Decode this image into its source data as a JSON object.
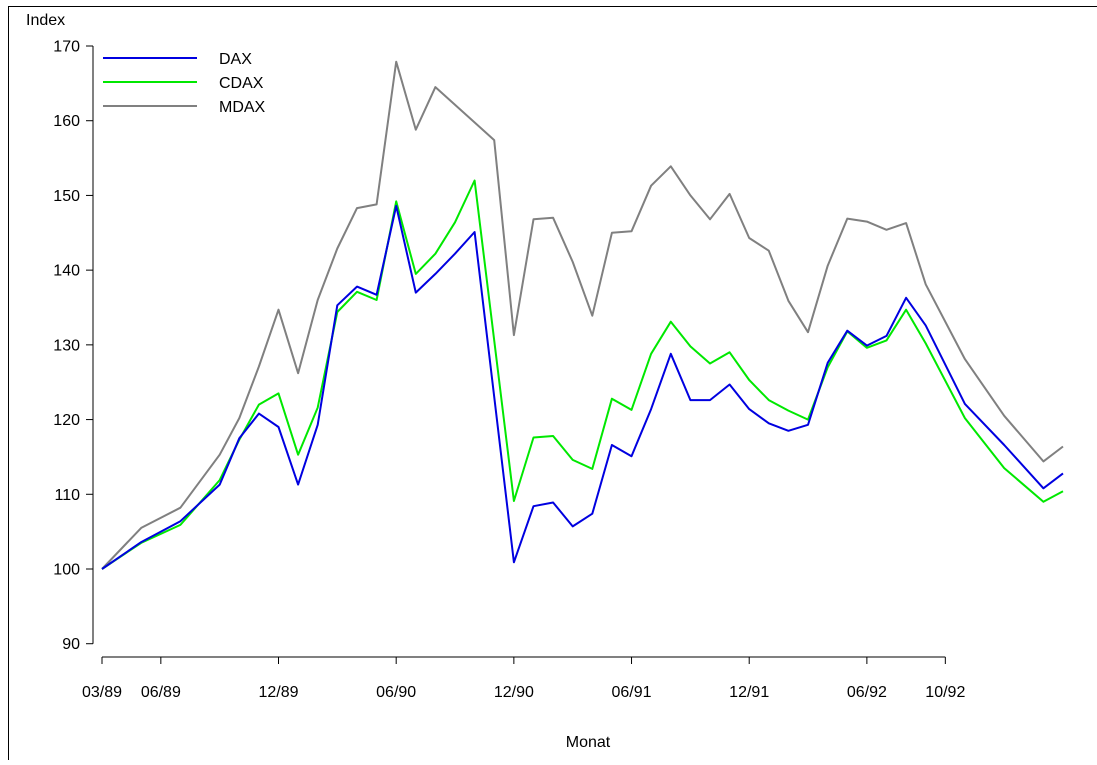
{
  "chart_data": {
    "type": "line",
    "ylabel": "Index",
    "xlabel": "Monat",
    "ylim": [
      88,
      172
    ],
    "yticks": [
      90,
      100,
      110,
      120,
      130,
      140,
      150,
      160,
      170
    ],
    "xticks": [
      {
        "label": "03/89",
        "month": "1989-03"
      },
      {
        "label": "06/89",
        "month": "1989-06"
      },
      {
        "label": "12/89",
        "month": "1989-12"
      },
      {
        "label": "06/90",
        "month": "1990-06"
      },
      {
        "label": "12/90",
        "month": "1990-12"
      },
      {
        "label": "06/91",
        "month": "1991-06"
      },
      {
        "label": "12/91",
        "month": "1991-12"
      },
      {
        "label": "06/92",
        "month": "1992-06"
      },
      {
        "label": "10/92",
        "month": "1992-10"
      }
    ],
    "legend_position": "top-left",
    "grid": false,
    "series": [
      {
        "name": "DAX",
        "color": "#0000e0",
        "points": [
          [
            "1989-03",
            100.0
          ],
          [
            "1989-05",
            103.6
          ],
          [
            "1989-07",
            106.4
          ],
          [
            "1989-09",
            111.3
          ],
          [
            "1989-10",
            117.5
          ],
          [
            "1989-11",
            120.8
          ],
          [
            "1989-12",
            119.0
          ],
          [
            "1990-01",
            111.3
          ],
          [
            "1990-02",
            119.3
          ],
          [
            "1990-03",
            135.3
          ],
          [
            "1990-04",
            137.8
          ],
          [
            "1990-05",
            136.7
          ],
          [
            "1990-06",
            148.6
          ],
          [
            "1990-07",
            137.0
          ],
          [
            "1990-08",
            139.5
          ],
          [
            "1990-09",
            142.2
          ],
          [
            "1990-10",
            145.1
          ],
          [
            "1990-12",
            100.9
          ],
          [
            "1991-01",
            108.4
          ],
          [
            "1991-02",
            108.9
          ],
          [
            "1991-03",
            105.7
          ],
          [
            "1991-04",
            107.4
          ],
          [
            "1991-05",
            116.6
          ],
          [
            "1991-06",
            115.1
          ],
          [
            "1991-07",
            121.4
          ],
          [
            "1991-08",
            128.8
          ],
          [
            "1991-09",
            122.6
          ],
          [
            "1991-10",
            122.6
          ],
          [
            "1991-11",
            124.7
          ],
          [
            "1991-12",
            121.4
          ],
          [
            "1992-01",
            119.5
          ],
          [
            "1992-02",
            118.5
          ],
          [
            "1992-03",
            119.3
          ],
          [
            "1992-04",
            127.6
          ],
          [
            "1992-05",
            131.9
          ],
          [
            "1992-06",
            129.9
          ],
          [
            "1992-07",
            131.2
          ],
          [
            "1992-08",
            136.3
          ],
          [
            "1992-09",
            132.6
          ],
          [
            "1992-11",
            122.1
          ],
          [
            "1993-01",
            116.6
          ],
          [
            "1993-03",
            110.8
          ],
          [
            "1993-04",
            112.8
          ]
        ]
      },
      {
        "name": "CDAX",
        "color": "#00e800",
        "points": [
          [
            "1989-03",
            100.0
          ],
          [
            "1989-05",
            103.5
          ],
          [
            "1989-07",
            105.9
          ],
          [
            "1989-09",
            111.9
          ],
          [
            "1989-10",
            117.3
          ],
          [
            "1989-11",
            122.0
          ],
          [
            "1989-12",
            123.5
          ],
          [
            "1990-01",
            115.3
          ],
          [
            "1990-02",
            121.6
          ],
          [
            "1990-03",
            134.4
          ],
          [
            "1990-04",
            137.1
          ],
          [
            "1990-05",
            136.0
          ],
          [
            "1990-06",
            149.2
          ],
          [
            "1990-07",
            139.5
          ],
          [
            "1990-08",
            142.2
          ],
          [
            "1990-09",
            146.4
          ],
          [
            "1990-10",
            152.0
          ],
          [
            "1990-12",
            109.1
          ],
          [
            "1991-01",
            117.6
          ],
          [
            "1991-02",
            117.8
          ],
          [
            "1991-03",
            114.6
          ],
          [
            "1991-04",
            113.4
          ],
          [
            "1991-05",
            122.8
          ],
          [
            "1991-06",
            121.3
          ],
          [
            "1991-07",
            128.8
          ],
          [
            "1991-08",
            133.1
          ],
          [
            "1991-09",
            129.8
          ],
          [
            "1991-10",
            127.5
          ],
          [
            "1991-11",
            129.0
          ],
          [
            "1991-12",
            125.3
          ],
          [
            "1992-01",
            122.6
          ],
          [
            "1992-02",
            121.2
          ],
          [
            "1992-03",
            120.0
          ],
          [
            "1992-04",
            127.0
          ],
          [
            "1992-05",
            131.8
          ],
          [
            "1992-06",
            129.6
          ],
          [
            "1992-07",
            130.6
          ],
          [
            "1992-08",
            134.7
          ],
          [
            "1992-09",
            130.2
          ],
          [
            "1992-11",
            120.2
          ],
          [
            "1993-01",
            113.5
          ],
          [
            "1993-03",
            109.0
          ],
          [
            "1993-04",
            110.4
          ]
        ]
      },
      {
        "name": "MDAX",
        "color": "#808080",
        "points": [
          [
            "1989-03",
            100.0
          ],
          [
            "1989-05",
            105.5
          ],
          [
            "1989-07",
            108.2
          ],
          [
            "1989-09",
            115.3
          ],
          [
            "1989-10",
            120.2
          ],
          [
            "1989-11",
            127.1
          ],
          [
            "1989-12",
            134.7
          ],
          [
            "1990-01",
            126.2
          ],
          [
            "1990-02",
            136.0
          ],
          [
            "1990-03",
            142.9
          ],
          [
            "1990-04",
            148.3
          ],
          [
            "1990-05",
            148.8
          ],
          [
            "1990-06",
            167.9
          ],
          [
            "1990-07",
            158.8
          ],
          [
            "1990-08",
            164.5
          ],
          [
            "1990-11",
            157.4
          ],
          [
            "1990-12",
            131.3
          ],
          [
            "1991-01",
            146.8
          ],
          [
            "1991-02",
            147.0
          ],
          [
            "1991-03",
            141.1
          ],
          [
            "1991-04",
            133.9
          ],
          [
            "1991-05",
            145.0
          ],
          [
            "1991-06",
            145.2
          ],
          [
            "1991-07",
            151.3
          ],
          [
            "1991-08",
            153.9
          ],
          [
            "1991-09",
            150.0
          ],
          [
            "1991-10",
            146.8
          ],
          [
            "1991-11",
            150.2
          ],
          [
            "1991-12",
            144.3
          ],
          [
            "1992-01",
            142.6
          ],
          [
            "1992-02",
            135.9
          ],
          [
            "1992-03",
            131.7
          ],
          [
            "1992-04",
            140.6
          ],
          [
            "1992-05",
            146.9
          ],
          [
            "1992-06",
            146.5
          ],
          [
            "1992-07",
            145.4
          ],
          [
            "1992-08",
            146.3
          ],
          [
            "1992-09",
            138.1
          ],
          [
            "1992-11",
            128.1
          ],
          [
            "1993-01",
            120.5
          ],
          [
            "1993-03",
            114.4
          ],
          [
            "1993-04",
            116.4
          ]
        ]
      }
    ]
  }
}
